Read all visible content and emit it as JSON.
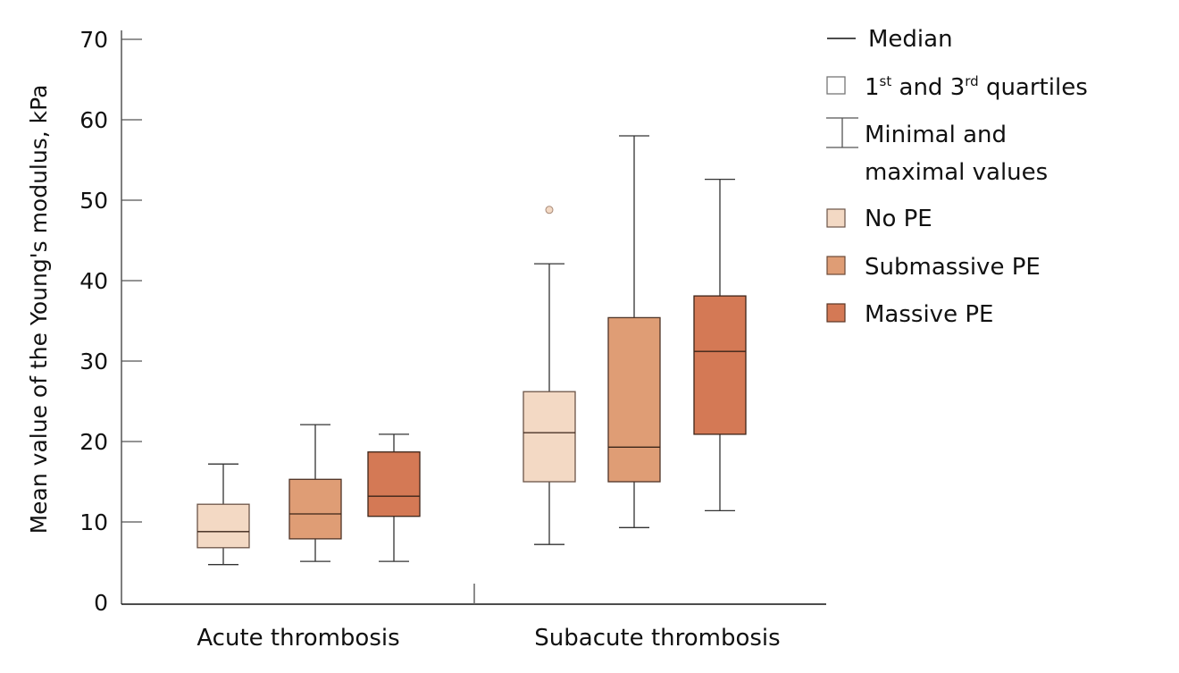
{
  "chart_data": {
    "type": "boxplot",
    "title": "",
    "xlabel": "",
    "ylabel": "Mean value of the Young's modulus, kPa",
    "ylim": [
      0,
      70
    ],
    "yticks": [
      0,
      10,
      20,
      30,
      40,
      50,
      60,
      70
    ],
    "grid": false,
    "categories": [
      "Acute thrombosis",
      "Subacute thrombosis"
    ],
    "series": [
      {
        "name": "No PE",
        "color": "#f3d9c4",
        "boxes": [
          {
            "min": 4.7,
            "q1": 6.8,
            "median": 8.8,
            "q3": 12.2,
            "max": 17.2,
            "outliers": []
          },
          {
            "min": 7.2,
            "q1": 15.0,
            "median": 21.1,
            "q3": 26.2,
            "max": 42.1,
            "outliers": [
              48.8
            ]
          }
        ]
      },
      {
        "name": "Submassive PE",
        "color": "#df9d75",
        "boxes": [
          {
            "min": 5.1,
            "q1": 7.9,
            "median": 11.0,
            "q3": 15.3,
            "max": 22.1,
            "outliers": []
          },
          {
            "min": 9.3,
            "q1": 15.0,
            "median": 19.3,
            "q3": 35.4,
            "max": 58.0,
            "outliers": []
          }
        ]
      },
      {
        "name": "Massive PE",
        "color": "#d47955",
        "boxes": [
          {
            "min": 5.1,
            "q1": 10.7,
            "median": 13.2,
            "q3": 18.7,
            "max": 20.9,
            "outliers": []
          },
          {
            "min": 11.4,
            "q1": 20.9,
            "median": 31.2,
            "q3": 38.1,
            "max": 52.6,
            "outliers": []
          }
        ]
      }
    ],
    "legend": {
      "placement": "top-right",
      "items": [
        {
          "type": "median",
          "label": "Median"
        },
        {
          "type": "quartiles",
          "label_parts": [
            "1",
            "st",
            " and 3",
            "rd",
            " quartiles"
          ]
        },
        {
          "type": "whisker",
          "label_lines": [
            "Minimal and",
            "maximal values"
          ]
        },
        {
          "type": "swatch",
          "label": "No PE",
          "color": "#f3d9c4"
        },
        {
          "type": "swatch",
          "label": "Submassive PE",
          "color": "#df9d75"
        },
        {
          "type": "swatch",
          "label": "Massive PE",
          "color": "#d47955"
        }
      ]
    }
  }
}
